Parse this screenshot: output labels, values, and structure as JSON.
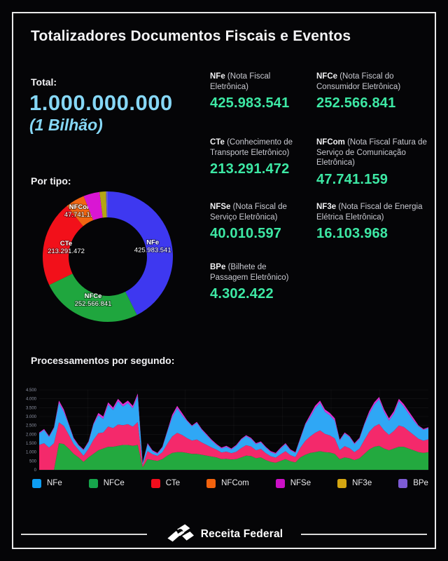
{
  "title": "Totalizadores Documentos Fiscais e Eventos",
  "total": {
    "label": "Total:",
    "value": "1.000.000.000",
    "subtitle": "(1 Bilhão)"
  },
  "por_tipo_label": "Por tipo:",
  "stats": [
    {
      "abbr": "NFe",
      "rest": " (Nota Fiscal Eletrônica)",
      "value": "425.983.541"
    },
    {
      "abbr": "NFCe",
      "rest": " (Nota Fiscal do Consumidor Eletrônica)",
      "value": "252.566.841"
    },
    {
      "abbr": "CTe",
      "rest": " (Conhecimento de Transporte Eletrônico)",
      "value": "213.291.472"
    },
    {
      "abbr": "NFCom",
      "rest": " (Nota Fiscal Fatura de Serviço de Comunicação Eletrônica)",
      "value": "47.741.159"
    },
    {
      "abbr": "NFSe",
      "rest": " (Nota Fiscal de Serviço Eletrônica)",
      "value": "40.010.597"
    },
    {
      "abbr": "NF3e",
      "rest": " (Nota Fiscal de Energia Elétrica Eletrônica)",
      "value": "16.103.968"
    },
    {
      "abbr": "BPe",
      "rest": " (Bilhete de Passagem Eletrônico)",
      "value": "4.302.422"
    }
  ],
  "colors": {
    "accent_cyan": "#86d7f6",
    "accent_green": "#3de8a4",
    "background": "#050507",
    "frame_border": "#e9e9e9"
  },
  "chart_data": [
    {
      "type": "pie",
      "title": "Por tipo:",
      "legend_position": "in-slice labels",
      "slices": [
        {
          "label": "NFe",
          "value": 425983541,
          "display": "425.983.541",
          "color": "#3e38f0",
          "show_label": true,
          "label_r": 66
        },
        {
          "label": "NFCe",
          "value": 252566841,
          "display": "252.566.841",
          "color": "#1fa63e",
          "show_label": true,
          "label_r": 65
        },
        {
          "label": "CTe",
          "value": 213291472,
          "display": "213.291.472",
          "color": "#f2101a",
          "show_label": true,
          "label_r": 61
        },
        {
          "label": "NFCom",
          "value": 47741159,
          "display": "47.741.159",
          "color": "#ef6512",
          "show_label": true,
          "label_r": 76
        },
        {
          "label": "NFSe",
          "value": 40010597,
          "display": "40.010.597",
          "color": "#d916d3",
          "show_label": false,
          "label_r": 0
        },
        {
          "label": "NF3e",
          "value": 16103968,
          "display": "16.103.968",
          "color": "#b4a513",
          "show_label": false,
          "label_r": 0
        },
        {
          "label": "BPe",
          "value": 4302422,
          "display": "4.302.422",
          "color": "#6258d9",
          "show_label": false,
          "label_r": 0
        }
      ]
    },
    {
      "type": "area",
      "title": "Processamentos por segundo:",
      "stacked": true,
      "grid": true,
      "ylim": [
        0,
        4500
      ],
      "y_ticks": [
        "0",
        "500",
        "1.000",
        "1.500",
        "2.000",
        "2.500",
        "3.000",
        "3.500",
        "4.000",
        "4.500"
      ],
      "series": [
        {
          "name": "NFCe",
          "color": "#23a93f",
          "values": [
            0,
            0,
            0,
            0,
            1500,
            1450,
            1200,
            900,
            700,
            450,
            700,
            900,
            1100,
            1200,
            1300,
            1300,
            1350,
            1400,
            1400,
            1350,
            1400,
            150,
            600,
            550,
            500,
            600,
            800,
            950,
            1000,
            1000,
            950,
            900,
            900,
            850,
            800,
            750,
            700,
            600,
            620,
            580,
            600,
            700,
            800,
            780,
            650,
            700,
            550,
            450,
            400,
            500,
            600,
            480,
            420,
            700,
            850,
            950,
            1000,
            1050,
            1000,
            980,
            900,
            600,
            700,
            650,
            550,
            650,
            900,
            1150,
            1300,
            1350,
            1200,
            1100,
            1200,
            1300,
            1300,
            1200,
            1100,
            1000,
            950,
            1000
          ]
        },
        {
          "name": "CTe",
          "color": "#f4296b",
          "values": [
            1400,
            1500,
            1250,
            1500,
            1170,
            1020,
            780,
            540,
            420,
            345,
            480,
            780,
            960,
            900,
            1140,
            1050,
            1200,
            1110,
            1170,
            1080,
            1290,
            120,
            450,
            330,
            285,
            390,
            660,
            930,
            1080,
            960,
            840,
            750,
            810,
            690,
            600,
            510,
            435,
            375,
            405,
            360,
            420,
            525,
            585,
            540,
            450,
            480,
            390,
            315,
            285,
            375,
            450,
            345,
            300,
            540,
            780,
            930,
            1080,
            1170,
            1020,
            960,
            870,
            510,
            630,
            570,
            450,
            540,
            780,
            990,
            1140,
            1230,
            1020,
            870,
            990,
            1200,
            1110,
            990,
            870,
            750,
            690,
            720
          ]
        },
        {
          "name": "NFe",
          "color": "#2fa7f5",
          "values": [
            650,
            750,
            600,
            850,
            1100,
            800,
            570,
            310,
            230,
            305,
            370,
            870,
            1010,
            770,
            1230,
            1020,
            1320,
            1060,
            1200,
            1040,
            1480,
            110,
            400,
            170,
            115,
            260,
            690,
            1090,
            1390,
            1110,
            960,
            800,
            940,
            710,
            550,
            390,
            265,
            225,
            275,
            210,
            330,
            475,
            515,
            430,
            350,
            370,
            310,
            235,
            215,
            325,
            400,
            275,
            230,
            510,
            920,
            1090,
            1390,
            1550,
            1250,
            1130,
            1000,
            540,
            720,
            630,
            450,
            560,
            870,
            1030,
            1230,
            1390,
            1050,
            800,
            980,
            1370,
            1160,
            980,
            800,
            700,
            610,
            630
          ]
        },
        {
          "name": "NFSe",
          "color": "#df2fd4",
          "values": [
            50,
            50,
            50,
            50,
            130,
            130,
            50,
            50,
            50,
            50,
            50,
            50,
            130,
            130,
            130,
            130,
            130,
            130,
            130,
            130,
            130,
            20,
            50,
            50,
            50,
            50,
            50,
            130,
            130,
            130,
            50,
            50,
            50,
            50,
            50,
            50,
            50,
            50,
            50,
            50,
            50,
            50,
            50,
            50,
            50,
            50,
            50,
            50,
            50,
            50,
            50,
            50,
            50,
            50,
            50,
            130,
            130,
            130,
            130,
            130,
            130,
            50,
            50,
            50,
            50,
            50,
            50,
            130,
            130,
            130,
            130,
            130,
            130,
            130,
            130,
            130,
            130,
            50,
            50,
            50
          ]
        }
      ]
    }
  ],
  "timeseries_title": "Processamentos por segundo:",
  "legend": [
    {
      "label": "NFe",
      "color": "#0d9df2"
    },
    {
      "label": "NFCe",
      "color": "#16a54b"
    },
    {
      "label": "CTe",
      "color": "#f20d1c"
    },
    {
      "label": "NFCom",
      "color": "#f2620d"
    },
    {
      "label": "NFSe",
      "color": "#cb10c6"
    },
    {
      "label": "NF3e",
      "color": "#d4a611"
    },
    {
      "label": "BPe",
      "color": "#7d5bd4"
    }
  ],
  "footer": {
    "brand": "Receita Federal"
  }
}
